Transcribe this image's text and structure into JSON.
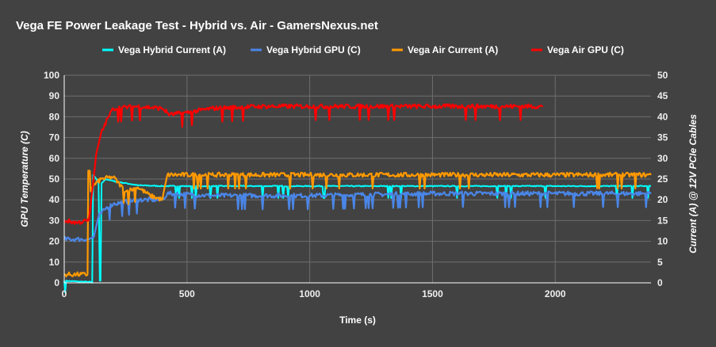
{
  "chart_data": {
    "type": "line",
    "title": "Vega FE Power Leakage Test -  Hybrid vs. Air - GamersNexus.net",
    "xlabel": "Time (s)",
    "ylabel": "GPU Temperature (C)",
    "y2label": "Current (A) @ 12V PCIe Cables",
    "xlim": [
      0,
      2390
    ],
    "ylim": [
      0,
      100
    ],
    "y2lim": [
      0,
      50
    ],
    "xticks": [
      "0",
      "500",
      "1000",
      "1500",
      "2000"
    ],
    "xtick_values": [
      0,
      500,
      1000,
      1500,
      2000
    ],
    "yticks": [
      "0",
      "10",
      "20",
      "30",
      "40",
      "50",
      "60",
      "70",
      "80",
      "90",
      "100"
    ],
    "y2ticks": [
      "0",
      "5",
      "10",
      "15",
      "20",
      "25",
      "30",
      "35",
      "40",
      "45",
      "50"
    ],
    "grid": true,
    "legend": "top",
    "background": "#424242",
    "series": [
      {
        "name": "Vega Hybrid Current (A)",
        "axis": "right",
        "color": "#00ffff",
        "x": [
          0,
          60,
          110,
          114,
          118,
          125,
          140,
          145,
          148,
          152,
          170,
          200,
          300,
          400,
          600,
          1000,
          1500,
          2000,
          2390
        ],
        "y": [
          0.5,
          0.3,
          0.2,
          0,
          26,
          25.5,
          24,
          0.5,
          0.5,
          24,
          25,
          24.5,
          23.5,
          23.3,
          23.3,
          23.3,
          23.3,
          23.3,
          23.3
        ]
      },
      {
        "name": "Vega Hybrid GPU (C)",
        "axis": "left",
        "color": "#4a86e8",
        "x": [
          0,
          50,
          100,
          120,
          140,
          170,
          200,
          300,
          400,
          420,
          600,
          1000,
          1500,
          2000,
          2390
        ],
        "y": [
          21,
          21,
          21,
          22,
          32,
          36,
          38,
          40,
          40,
          43,
          42,
          42,
          43,
          43,
          43
        ]
      },
      {
        "name": "Vega Air Current (A)",
        "axis": "right",
        "color": "#ff9900",
        "x": [
          0,
          50,
          95,
          98,
          104,
          108,
          120,
          150,
          200,
          250,
          300,
          350,
          400,
          420,
          600,
          1000,
          1500,
          2000,
          2390
        ],
        "y": [
          2,
          2,
          2,
          27,
          27,
          22,
          23.5,
          25,
          25.5,
          22,
          23,
          21,
          20,
          26,
          26,
          26,
          26,
          26,
          26
        ]
      },
      {
        "name": "Vega Air GPU (C)",
        "axis": "left",
        "color": "#ff0000",
        "x": [
          0,
          50,
          100,
          115,
          130,
          150,
          180,
          200,
          300,
          400,
          430,
          500,
          600,
          800,
          1000,
          1500,
          1950
        ],
        "y": [
          30,
          29,
          30,
          45,
          62,
          72,
          80,
          84,
          85,
          84,
          81,
          82,
          84,
          85,
          85,
          85,
          85
        ]
      }
    ]
  }
}
